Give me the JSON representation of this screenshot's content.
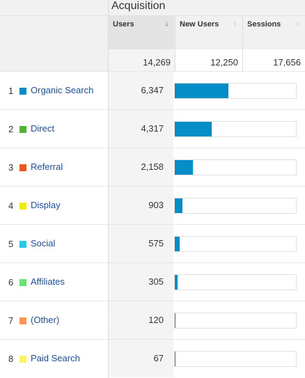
{
  "group_title": "Acquisition",
  "columns": [
    {
      "label": "Users",
      "sort": "↓",
      "active": true
    },
    {
      "label": "New Users",
      "sort": "↕",
      "active": false
    },
    {
      "label": "Sessions",
      "sort": "↕",
      "active": false
    }
  ],
  "totals": {
    "users": "14,269",
    "new_users": "12,250",
    "sessions": "17,656"
  },
  "rows": [
    {
      "rank": "1",
      "channel": "Organic Search",
      "color": "#058dc7",
      "users": "6,347",
      "share": 0.4448
    },
    {
      "rank": "2",
      "channel": "Direct",
      "color": "#50b432",
      "users": "4,317",
      "share": 0.3025
    },
    {
      "rank": "3",
      "channel": "Referral",
      "color": "#ed561b",
      "users": "2,158",
      "share": 0.1512
    },
    {
      "rank": "4",
      "channel": "Display",
      "color": "#edef00",
      "users": "903",
      "share": 0.0633
    },
    {
      "rank": "5",
      "channel": "Social",
      "color": "#24cbe5",
      "users": "575",
      "share": 0.0403
    },
    {
      "rank": "6",
      "channel": "Affiliates",
      "color": "#64e572",
      "users": "305",
      "share": 0.0214
    },
    {
      "rank": "7",
      "channel": "(Other)",
      "color": "#ff9655",
      "users": "120",
      "share": 0.0084
    },
    {
      "rank": "8",
      "channel": "Paid Search",
      "color": "#fff263",
      "users": "67",
      "share": 0.0047
    }
  ]
}
